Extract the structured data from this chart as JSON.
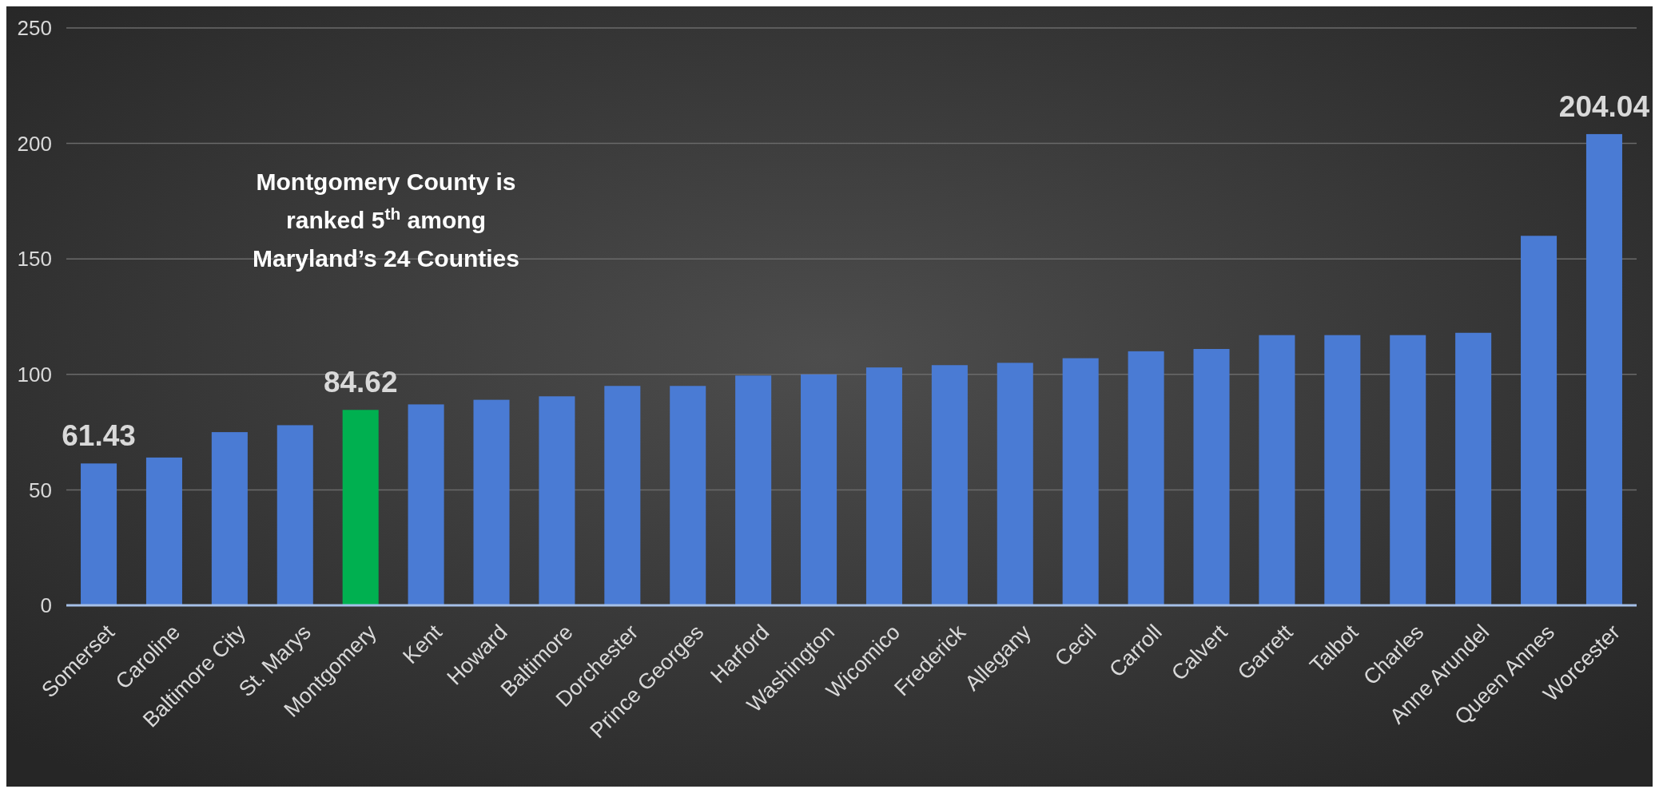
{
  "chart_data": {
    "type": "bar",
    "categories": [
      "Somerset",
      "Caroline",
      "Baltimore City",
      "St. Marys",
      "Montgomery",
      "Kent",
      "Howard",
      "Baltimore",
      "Dorchester",
      "Prince Georges",
      "Harford",
      "Washington",
      "Wicomico",
      "Frederick",
      "Allegany",
      "Cecil",
      "Carroll",
      "Calvert",
      "Garrett",
      "Talbot",
      "Charles",
      "Anne Arundel",
      "Queen Annes",
      "Worcester"
    ],
    "values": [
      61.43,
      64,
      75,
      78,
      84.62,
      87,
      89,
      90.5,
      95,
      95,
      99.5,
      100,
      103,
      104,
      105,
      107,
      110,
      111,
      117,
      117,
      117,
      118,
      160,
      204.04
    ],
    "colors": [
      "#4a7bd4",
      "#4a7bd4",
      "#4a7bd4",
      "#4a7bd4",
      "#00b050",
      "#4a7bd4",
      "#4a7bd4",
      "#4a7bd4",
      "#4a7bd4",
      "#4a7bd4",
      "#4a7bd4",
      "#4a7bd4",
      "#4a7bd4",
      "#4a7bd4",
      "#4a7bd4",
      "#4a7bd4",
      "#4a7bd4",
      "#4a7bd4",
      "#4a7bd4",
      "#4a7bd4",
      "#4a7bd4",
      "#4a7bd4",
      "#4a7bd4",
      "#4a7bd4"
    ],
    "value_labels": [
      "61.43",
      null,
      null,
      null,
      "84.62",
      null,
      null,
      null,
      null,
      null,
      null,
      null,
      null,
      null,
      null,
      null,
      null,
      null,
      null,
      null,
      null,
      null,
      null,
      "204.04"
    ],
    "ylim": [
      0,
      250
    ],
    "yticks": [
      0,
      50,
      100,
      150,
      200,
      250
    ],
    "grid": "y",
    "annotations": [
      "Montgomery County is ranked 5$^{th}$ among Maryland’s 24 Counties"
    ]
  }
}
